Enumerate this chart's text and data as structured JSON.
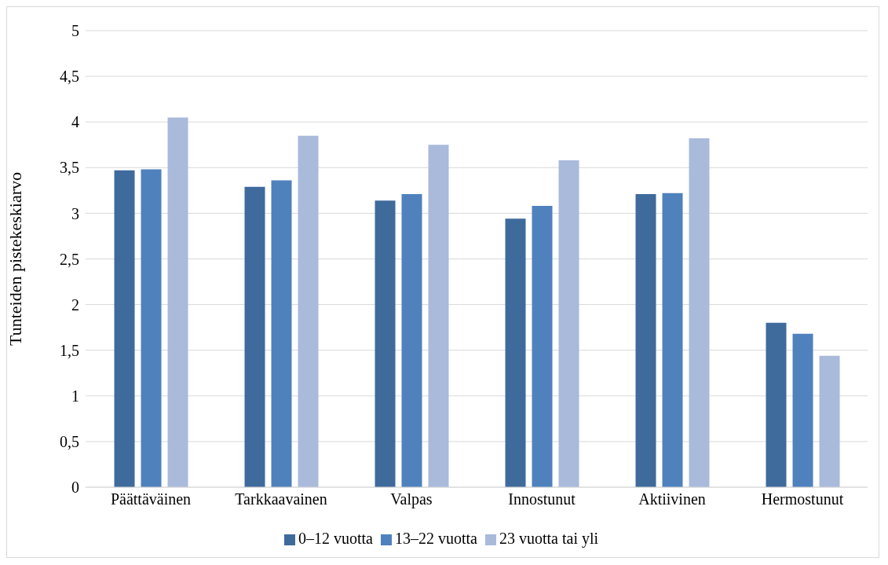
{
  "chart_data": {
    "type": "bar",
    "ylabel": "Tunteiden pistekeskiarvo",
    "categories": [
      "Päättäväinen",
      "Tarkkaavainen",
      "Valpas",
      "Innostunut",
      "Aktiivinen",
      "Hermostunut"
    ],
    "series": [
      {
        "name": "0–12 vuotta",
        "color": "#3f6a9c",
        "values": [
          3.47,
          3.29,
          3.14,
          2.94,
          3.21,
          1.8
        ]
      },
      {
        "name": "13–22 vuotta",
        "color": "#4f81bd",
        "values": [
          3.48,
          3.36,
          3.21,
          3.08,
          3.22,
          1.68
        ]
      },
      {
        "name": "23 vuotta tai yli",
        "color": "#a9badb",
        "values": [
          4.05,
          3.85,
          3.75,
          3.58,
          3.82,
          1.44
        ]
      }
    ],
    "ylim": [
      0,
      5
    ],
    "yticks": [
      {
        "value": 0,
        "label": "0"
      },
      {
        "value": 0.5,
        "label": "0,5"
      },
      {
        "value": 1,
        "label": "1"
      },
      {
        "value": 1.5,
        "label": "1,5"
      },
      {
        "value": 2,
        "label": "2"
      },
      {
        "value": 2.5,
        "label": "2,5"
      },
      {
        "value": 3,
        "label": "3"
      },
      {
        "value": 3.5,
        "label": "3,5"
      },
      {
        "value": 4,
        "label": "4"
      },
      {
        "value": 4.5,
        "label": "4,5"
      },
      {
        "value": 5,
        "label": "5"
      }
    ],
    "grid": "y",
    "legend": "bottom"
  }
}
